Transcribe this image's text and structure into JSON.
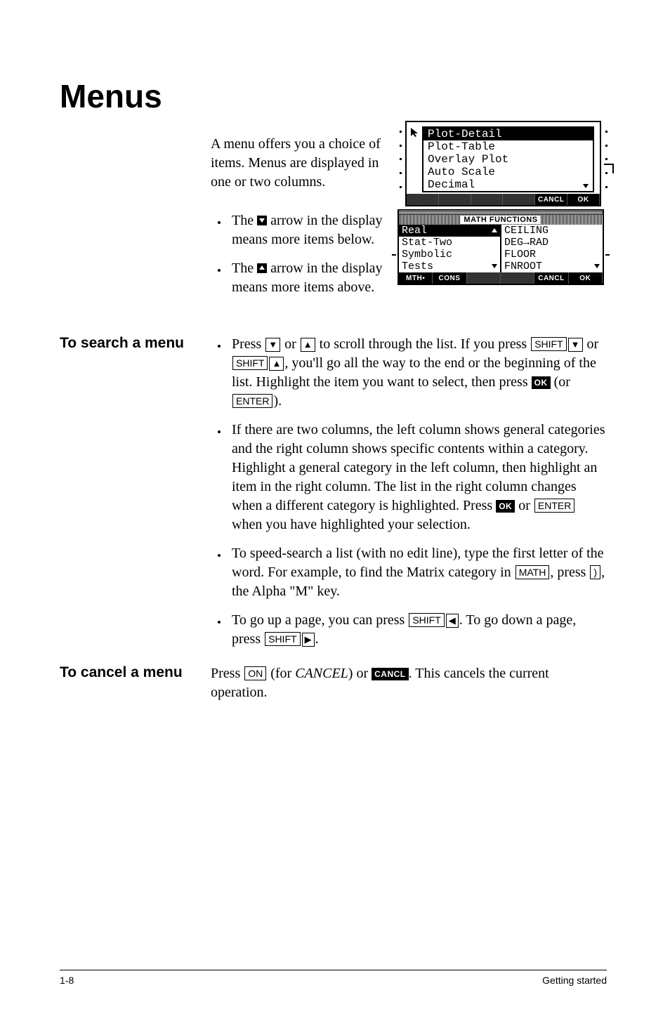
{
  "title": "Menus",
  "intro": "A menu offers you a choice of items. Menus are displayed in one or two columns.",
  "arrowNotes": {
    "down": {
      "pre": "The ",
      "post": " arrow in the display means more items below."
    },
    "up": {
      "pre": "The ",
      "post": " arrow in the display means more items above."
    }
  },
  "sections": {
    "search": {
      "heading": "To search a menu",
      "b1": {
        "t1": "Press ",
        "t2": " or ",
        "t3": " to scroll through the list. If you press ",
        "t4": " or ",
        "t5": ", you'll go all the way to the end or the beginning of the list. Highlight the item you want to select, then press ",
        "t6": " (or ",
        "t7": ")."
      },
      "b2": {
        "t1": "If there are two columns, the left column shows general categories and the right column shows specific contents within a category. Highlight a general category in the left column, then highlight an item in the right column. The list in the right column changes when a different category is highlighted. Press ",
        "t2": " or ",
        "t3": "  when you have highlighted your selection."
      },
      "b3": {
        "t1": "To speed-search a list (with no edit line), type the first letter of the word. For example, to find the Matrix category in ",
        "t2": ", press ",
        "t3": ", the Alpha  \"M\"  key."
      },
      "b4": {
        "t1": "To go up a page, you can press ",
        "t2": ". To go down a page, press ",
        "t3": "."
      }
    },
    "cancel": {
      "heading": "To cancel a menu",
      "t1": "Press ",
      "t2": " (for ",
      "cancelWord": "CANCEL",
      "t3": ") or ",
      "t4": ". This cancels the current operation."
    }
  },
  "keys": {
    "shift": "SHIFT",
    "enter": "ENTER",
    "on": "ON",
    "math": "MATH",
    "rparen": " ) ",
    "down": "▼",
    "up": "▲",
    "left": "◀",
    "right": "▶",
    "okSoft": "OK",
    "cancelSoft": "CANCL"
  },
  "calc1": {
    "items": [
      "Plot-Detail",
      "Plot-Table",
      "Overlay Plot",
      "Auto Scale",
      "Decimal"
    ],
    "selectedIndex": 0,
    "softkeys": [
      "",
      "",
      "",
      "",
      "CANCL",
      "OK"
    ]
  },
  "calc2": {
    "title": "MATH FUNCTIONS",
    "left": [
      "Real",
      "Stat-Two",
      "Symbolic",
      "Tests"
    ],
    "right": [
      "CEILING",
      "DEG→RAD",
      "FLOOR",
      "FNROOT"
    ],
    "leftSelected": 0,
    "softkeys": [
      "MTH▪",
      "CONS",
      "",
      "",
      "CANCL",
      "OK"
    ]
  },
  "footer": {
    "left": "1-8",
    "right": "Getting started"
  },
  "colors": {
    "text": "#000000",
    "bg": "#ffffff"
  }
}
